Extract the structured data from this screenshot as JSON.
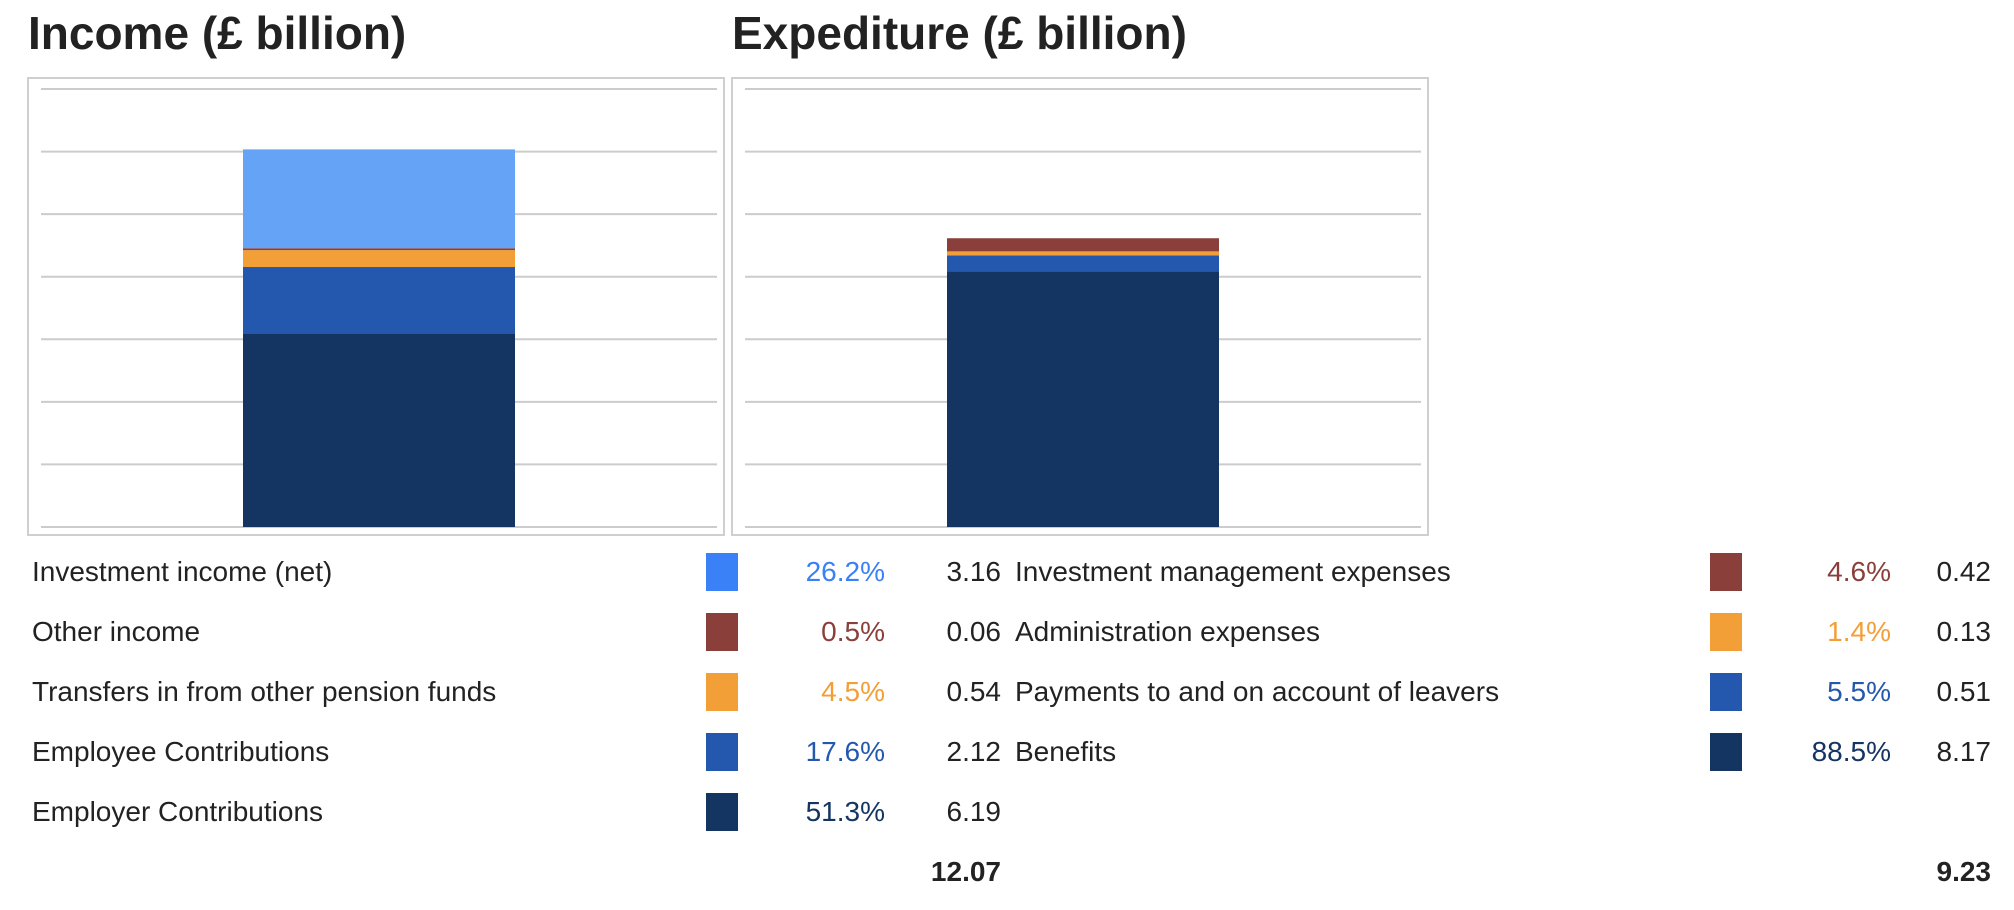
{
  "chart_data": [
    {
      "type": "bar",
      "stacked": true,
      "title": "Income (£ billion)",
      "ylim": [
        0,
        14
      ],
      "grid": true,
      "series": [
        {
          "name": "Employer Contributions",
          "value": 6.19,
          "percent": "51.3%",
          "display_value": "6.19",
          "color": "#143462",
          "bar_color": "#143462"
        },
        {
          "name": "Employee Contributions",
          "value": 2.12,
          "percent": "17.6%",
          "display_value": "2.12",
          "color": "#2458ae",
          "bar_color": "#2458ae"
        },
        {
          "name": "Transfers in from other pension funds",
          "value": 0.54,
          "percent": "4.5%",
          "display_value": "0.54",
          "color": "#f29f38",
          "bar_color": "#f29f38"
        },
        {
          "name": "Other income",
          "value": 0.06,
          "percent": "0.5%",
          "display_value": "0.06",
          "color": "#8a3f3b",
          "bar_color": "#8a3f3b"
        },
        {
          "name": "Investment income (net)",
          "value": 3.16,
          "percent": "26.2%",
          "display_value": "3.16",
          "color": "#3a80f6",
          "bar_color": "#65a3f7"
        }
      ],
      "total": "12.07"
    },
    {
      "type": "bar",
      "stacked": true,
      "title": "Expediture (£ billion)",
      "ylim": [
        0,
        14
      ],
      "grid": true,
      "series": [
        {
          "name": "Benefits",
          "value": 8.17,
          "percent": "88.5%",
          "display_value": "8.17",
          "color": "#143462",
          "bar_color": "#143462"
        },
        {
          "name": "Payments to and on account of leavers",
          "value": 0.51,
          "percent": "5.5%",
          "display_value": "0.51",
          "color": "#2458ae",
          "bar_color": "#2458ae"
        },
        {
          "name": "Administration expenses",
          "value": 0.13,
          "percent": "1.4%",
          "display_value": "0.13",
          "color": "#f29f38",
          "bar_color": "#f29f38"
        },
        {
          "name": "Investment management expenses",
          "value": 0.42,
          "percent": "4.6%",
          "display_value": "0.42",
          "color": "#8a3f3b",
          "bar_color": "#8a3f3b"
        }
      ],
      "total": "9.23"
    }
  ]
}
